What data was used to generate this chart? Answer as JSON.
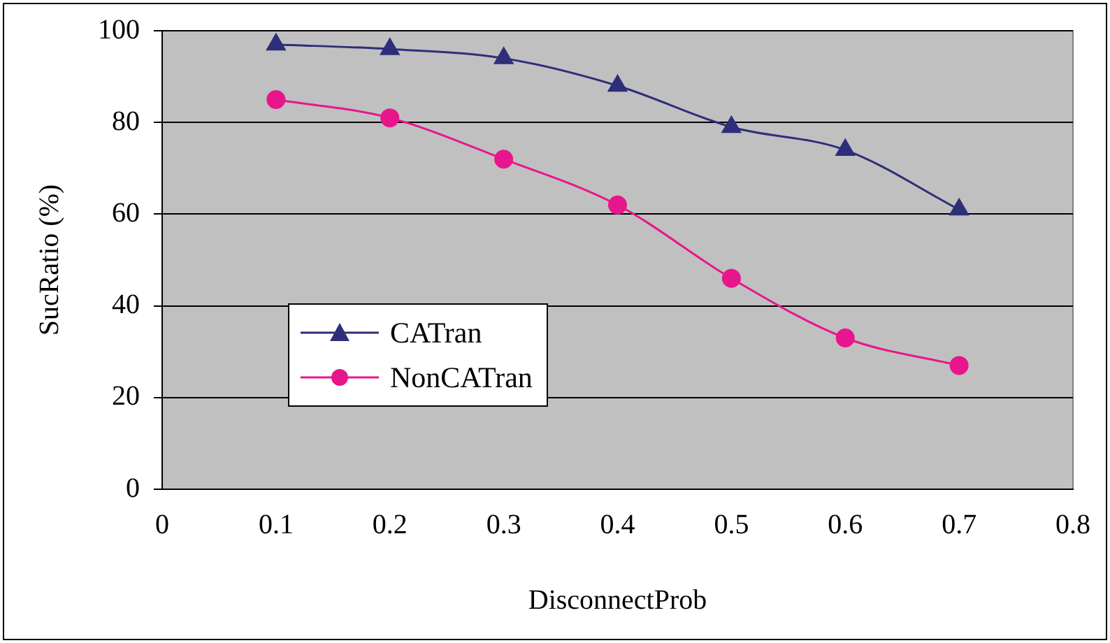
{
  "chart_data": {
    "type": "line",
    "xlabel": "DisconnectProb",
    "ylabel": "SucRatio (%)",
    "x": [
      0.1,
      0.2,
      0.3,
      0.4,
      0.5,
      0.6,
      0.7
    ],
    "series": [
      {
        "name": "CATran",
        "color": "#2e2e7a",
        "marker": "triangle",
        "values": [
          97,
          96,
          94,
          88,
          79,
          74,
          61
        ]
      },
      {
        "name": "NonCATran",
        "color": "#e8168c",
        "marker": "circle",
        "values": [
          85,
          81,
          72,
          62,
          46,
          33,
          27
        ]
      }
    ],
    "xlim": [
      0,
      0.8
    ],
    "xticks": [
      0,
      0.1,
      0.2,
      0.3,
      0.4,
      0.5,
      0.6,
      0.7,
      0.8
    ],
    "ylim": [
      0,
      100
    ],
    "yticks": [
      0,
      20,
      40,
      60,
      80,
      100
    ],
    "grid": "y",
    "legend": "bottom left",
    "line_style": "solid"
  }
}
